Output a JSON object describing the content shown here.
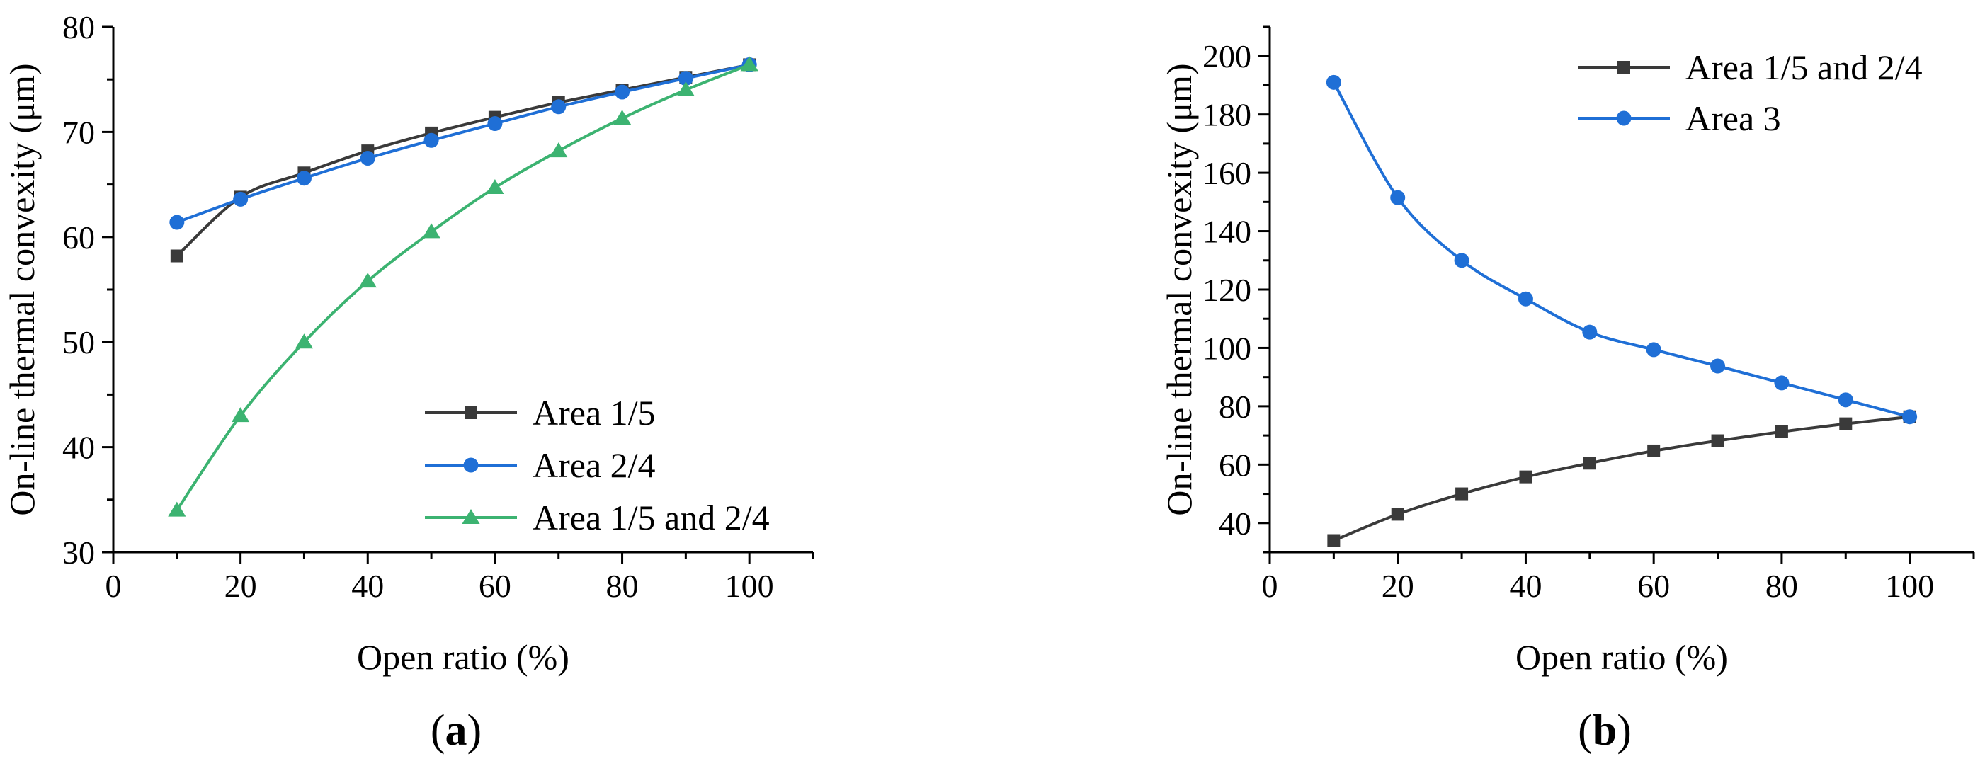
{
  "chart_data": [
    {
      "type": "line",
      "panel": "(a)",
      "panel_letter": "a",
      "xlabel": "Open ratio (%)",
      "ylabel": "On-line thermal convexity (μm)",
      "xlim": [
        0,
        110
      ],
      "ylim": [
        30,
        80
      ],
      "xticks": [
        0,
        20,
        40,
        60,
        80,
        100
      ],
      "yticks": [
        30,
        40,
        50,
        60,
        70,
        80
      ],
      "legend_position": "bottom-right",
      "x": [
        10,
        20,
        30,
        40,
        50,
        60,
        70,
        80,
        90,
        100
      ],
      "series": [
        {
          "name": "Area 1/5",
          "color": "#3a3a3a",
          "marker": "square",
          "values": [
            58.2,
            63.8,
            66.1,
            68.2,
            69.9,
            71.4,
            72.8,
            74.0,
            75.2,
            76.4
          ]
        },
        {
          "name": "Area 2/4",
          "color": "#1f6fd6",
          "marker": "circle",
          "values": [
            61.4,
            63.6,
            65.6,
            67.5,
            69.2,
            70.8,
            72.4,
            73.8,
            75.1,
            76.4
          ]
        },
        {
          "name": "Area 1/5 and 2/4",
          "color": "#3cb371",
          "marker": "triangle",
          "values": [
            34.0,
            43.0,
            50.0,
            55.8,
            60.5,
            64.7,
            68.2,
            71.3,
            74.0,
            76.4
          ]
        }
      ]
    },
    {
      "type": "line",
      "panel": "(b)",
      "panel_letter": "b",
      "xlabel": "Open ratio (%)",
      "ylabel": "On-line thermal convexity (μm)",
      "xlim": [
        0,
        110
      ],
      "ylim": [
        30,
        210
      ],
      "xticks": [
        0,
        20,
        40,
        60,
        80,
        100
      ],
      "yticks": [
        40,
        60,
        80,
        100,
        120,
        140,
        160,
        180,
        200
      ],
      "legend_position": "top-right",
      "x": [
        10,
        20,
        30,
        40,
        50,
        60,
        70,
        80,
        90,
        100
      ],
      "series": [
        {
          "name": "Area 1/5 and 2/4",
          "color": "#3a3a3a",
          "marker": "square",
          "values": [
            34.0,
            43.0,
            50.0,
            55.8,
            60.5,
            64.7,
            68.2,
            71.3,
            74.0,
            76.4
          ]
        },
        {
          "name": "Area 3",
          "color": "#1f6fd6",
          "marker": "circle",
          "values": [
            191.0,
            151.5,
            130.0,
            116.8,
            105.4,
            99.4,
            93.8,
            88.0,
            82.2,
            76.4
          ]
        }
      ]
    }
  ]
}
